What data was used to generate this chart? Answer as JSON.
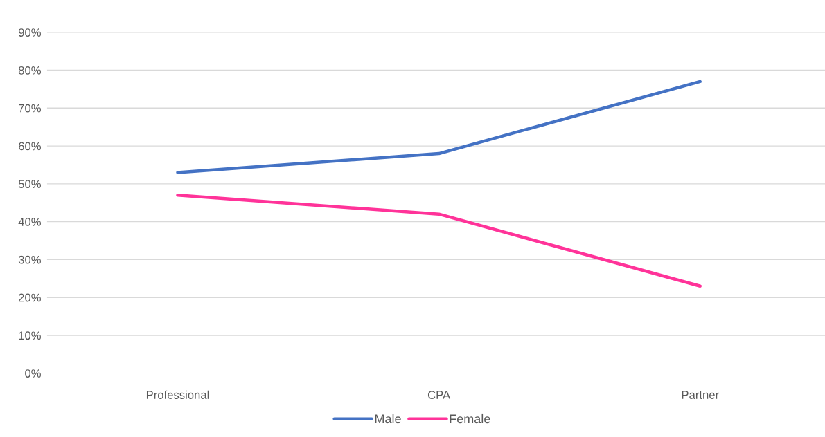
{
  "chart_data": {
    "type": "line",
    "categories": [
      "Professional",
      "CPA",
      "Partner"
    ],
    "series": [
      {
        "name": "Male",
        "color": "#4472c4",
        "values": [
          53,
          58,
          77
        ]
      },
      {
        "name": "Female",
        "color": "#ff3399",
        "values": [
          47,
          42,
          23
        ]
      }
    ],
    "ylim": [
      0,
      90
    ],
    "yticks": [
      {
        "value": 0,
        "label": "0%"
      },
      {
        "value": 10,
        "label": "10%"
      },
      {
        "value": 20,
        "label": "20%"
      },
      {
        "value": 30,
        "label": "30%"
      },
      {
        "value": 40,
        "label": "40%"
      },
      {
        "value": 50,
        "label": "50%"
      },
      {
        "value": 60,
        "label": "60%"
      },
      {
        "value": 70,
        "label": "70%"
      },
      {
        "value": 80,
        "label": "80%"
      },
      {
        "value": 90,
        "label": "90%"
      }
    ],
    "grid": "y",
    "legend": "bottom",
    "marker": "none",
    "line_style": "solid"
  }
}
